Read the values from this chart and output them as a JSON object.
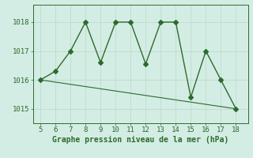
{
  "x": [
    5,
    6,
    7,
    8,
    9,
    10,
    11,
    12,
    13,
    14,
    15,
    16,
    17,
    18
  ],
  "y_main": [
    1016.0,
    1016.3,
    1017.0,
    1018.0,
    1016.6,
    1018.0,
    1018.0,
    1016.55,
    1018.0,
    1018.0,
    1015.4,
    1017.0,
    1016.0,
    1015.0
  ],
  "y_trend_x": [
    5,
    18
  ],
  "y_trend_y": [
    1016.0,
    1015.0
  ],
  "line_color": "#2d6a2d",
  "bg_color": "#d4ede4",
  "grid_color": "#b8d8c8",
  "xlabel": "Graphe pression niveau de la mer (hPa)",
  "yticks": [
    1015,
    1016,
    1017,
    1018
  ],
  "xticks": [
    5,
    6,
    7,
    8,
    9,
    10,
    11,
    12,
    13,
    14,
    15,
    16,
    17,
    18
  ],
  "ylim": [
    1014.5,
    1018.6
  ],
  "xlim": [
    4.5,
    18.8
  ],
  "markersize": 3,
  "linewidth": 1.0
}
